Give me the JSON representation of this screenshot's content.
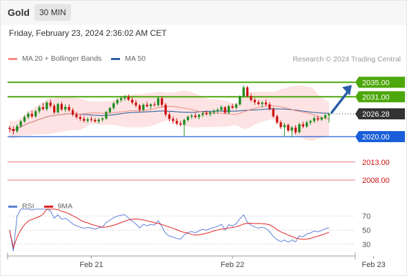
{
  "header": {
    "title": "Gold",
    "timeframe": "30 MIN"
  },
  "datetime": "Friday, February 23, 2024 2:36:02 AM CET",
  "legend": [
    {
      "label": "MA 20 + Bollinger Bands",
      "color": "#f28b82"
    },
    {
      "label": "MA 50",
      "color": "#2f5f9e"
    }
  ],
  "credit": "Research © 2024 Trading Central",
  "rsi_legend": [
    {
      "label": "RSI",
      "color": "#5b7fd6"
    },
    {
      "label": "9MA",
      "color": "#e02020"
    }
  ],
  "colors": {
    "up": "#1e8c1e",
    "down": "#cc1111",
    "resistance": "#4ca70a",
    "support": "#1a5fd9",
    "target_line": "#e57373",
    "arrow": "#2a5ea8",
    "bands": "#fde3e3"
  },
  "chart_data": [
    {
      "type": "candlestick",
      "title": "Gold",
      "ylim": [
        2004,
        2040
      ],
      "current_price": 2026.28,
      "levels": [
        {
          "value": 2035.0,
          "label": "2035.00",
          "kind": "resistance"
        },
        {
          "value": 2031.0,
          "label": "2031.00",
          "kind": "resistance"
        },
        {
          "value": 2026.28,
          "label": "2026.28",
          "kind": "current"
        },
        {
          "value": 2020.0,
          "label": "2020.00",
          "kind": "support"
        },
        {
          "value": 2013.0,
          "label": "2013.00",
          "kind": "target"
        },
        {
          "value": 2008.0,
          "label": "2008.00",
          "kind": "target"
        }
      ],
      "x_ticks": [
        "Feb 21",
        "Feb 22",
        "Feb 23"
      ],
      "x_tick_index": [
        22,
        60,
        98
      ],
      "series": [
        {
          "name": "Price",
          "ohlc": [
            [
              2022.4,
              2023.0,
              2021.2,
              2022.1
            ],
            [
              2022.1,
              2022.8,
              2020.6,
              2021.5
            ],
            [
              2021.5,
              2023.4,
              2021.0,
              2022.9
            ],
            [
              2022.9,
              2024.6,
              2022.5,
              2024.2
            ],
            [
              2024.2,
              2025.9,
              2023.8,
              2025.4
            ],
            [
              2025.4,
              2026.8,
              2024.9,
              2026.3
            ],
            [
              2026.3,
              2027.2,
              2025.1,
              2025.6
            ],
            [
              2025.6,
              2027.4,
              2025.2,
              2027.0
            ],
            [
              2027.0,
              2028.6,
              2026.4,
              2028.1
            ],
            [
              2028.1,
              2029.3,
              2027.2,
              2027.6
            ],
            [
              2027.6,
              2029.8,
              2027.1,
              2029.4
            ],
            [
              2029.4,
              2030.2,
              2028.0,
              2028.5
            ],
            [
              2028.5,
              2029.1,
              2026.2,
              2026.7
            ],
            [
              2026.7,
              2029.4,
              2026.4,
              2029.0
            ],
            [
              2029.0,
              2029.6,
              2027.1,
              2027.5
            ],
            [
              2027.5,
              2028.9,
              2026.8,
              2028.2
            ],
            [
              2028.2,
              2028.9,
              2026.9,
              2027.3
            ],
            [
              2027.3,
              2027.9,
              2025.6,
              2026.1
            ],
            [
              2026.1,
              2026.8,
              2024.9,
              2025.4
            ],
            [
              2025.4,
              2026.1,
              2024.3,
              2024.9
            ],
            [
              2024.9,
              2025.6,
              2023.9,
              2024.4
            ],
            [
              2024.4,
              2025.3,
              2023.8,
              2024.8
            ],
            [
              2024.8,
              2025.6,
              2024.1,
              2024.6
            ],
            [
              2024.6,
              2025.2,
              2023.9,
              2024.2
            ],
            [
              2024.2,
              2025.1,
              2023.6,
              2024.7
            ],
            [
              2024.7,
              2025.4,
              2024.1,
              2025.0
            ],
            [
              2025.0,
              2027.1,
              2024.6,
              2026.8
            ],
            [
              2026.8,
              2028.2,
              2026.3,
              2027.9
            ],
            [
              2027.9,
              2029.6,
              2027.4,
              2029.2
            ],
            [
              2029.2,
              2030.6,
              2028.7,
              2030.1
            ],
            [
              2030.1,
              2031.2,
              2029.5,
              2030.6
            ],
            [
              2030.6,
              2031.5,
              2029.9,
              2031.0
            ],
            [
              2031.0,
              2031.6,
              2029.8,
              2030.2
            ],
            [
              2030.2,
              2030.8,
              2028.9,
              2029.4
            ],
            [
              2029.4,
              2030.1,
              2028.1,
              2028.6
            ],
            [
              2028.6,
              2029.0,
              2026.9,
              2027.4
            ],
            [
              2027.4,
              2029.2,
              2027.0,
              2028.8
            ],
            [
              2028.8,
              2029.6,
              2028.0,
              2028.4
            ],
            [
              2028.4,
              2029.2,
              2027.6,
              2028.9
            ],
            [
              2028.9,
              2029.6,
              2028.2,
              2028.7
            ],
            [
              2028.7,
              2031.2,
              2028.3,
              2030.6
            ],
            [
              2030.6,
              2031.0,
              2028.2,
              2028.8
            ],
            [
              2028.8,
              2029.3,
              2025.5,
              2026.1
            ],
            [
              2026.1,
              2026.7,
              2024.2,
              2024.9
            ],
            [
              2024.9,
              2025.6,
              2023.6,
              2024.3
            ],
            [
              2024.3,
              2025.1,
              2023.1,
              2023.6
            ],
            [
              2023.6,
              2024.3,
              2022.8,
              2023.3
            ],
            [
              2023.3,
              2025.0,
              2020.2,
              2024.6
            ],
            [
              2024.6,
              2025.8,
              2024.1,
              2025.5
            ],
            [
              2025.5,
              2026.3,
              2024.9,
              2025.8
            ],
            [
              2025.8,
              2026.6,
              2025.0,
              2025.4
            ],
            [
              2025.4,
              2026.3,
              2024.8,
              2026.0
            ],
            [
              2026.0,
              2026.9,
              2025.4,
              2026.5
            ],
            [
              2026.5,
              2027.2,
              2025.8,
              2026.2
            ],
            [
              2026.2,
              2027.0,
              2025.6,
              2026.7
            ],
            [
              2026.7,
              2027.6,
              2026.1,
              2027.1
            ],
            [
              2027.1,
              2027.9,
              2026.5,
              2027.4
            ],
            [
              2027.4,
              2028.6,
              2026.9,
              2028.1
            ],
            [
              2028.1,
              2028.4,
              2026.2,
              2026.6
            ],
            [
              2026.6,
              2028.8,
              2026.2,
              2028.4
            ],
            [
              2028.4,
              2029.1,
              2027.6,
              2028.0
            ],
            [
              2028.0,
              2029.3,
              2027.5,
              2028.9
            ],
            [
              2028.9,
              2031.4,
              2028.6,
              2031.1
            ],
            [
              2031.1,
              2034.2,
              2030.8,
              2033.6
            ],
            [
              2033.6,
              2034.0,
              2030.8,
              2031.2
            ],
            [
              2031.2,
              2031.9,
              2029.6,
              2030.1
            ],
            [
              2030.1,
              2030.7,
              2028.8,
              2029.5
            ],
            [
              2029.5,
              2030.1,
              2028.6,
              2029.0
            ],
            [
              2029.0,
              2029.8,
              2028.1,
              2029.4
            ],
            [
              2029.4,
              2030.2,
              2028.4,
              2028.9
            ],
            [
              2028.9,
              2029.5,
              2027.2,
              2027.7
            ],
            [
              2027.7,
              2028.1,
              2025.2,
              2025.6
            ],
            [
              2025.6,
              2026.1,
              2023.4,
              2023.9
            ],
            [
              2023.9,
              2024.5,
              2022.1,
              2022.6
            ],
            [
              2022.6,
              2023.8,
              2020.1,
              2023.2
            ],
            [
              2023.2,
              2023.6,
              2021.2,
              2021.7
            ],
            [
              2021.7,
              2022.9,
              2019.8,
              2022.5
            ],
            [
              2022.5,
              2023.2,
              2020.6,
              2021.2
            ],
            [
              2021.2,
              2023.8,
              2020.9,
              2023.4
            ],
            [
              2023.4,
              2024.1,
              2022.3,
              2022.8
            ],
            [
              2022.8,
              2024.4,
              2022.4,
              2023.9
            ],
            [
              2023.9,
              2024.7,
              2023.2,
              2024.3
            ],
            [
              2024.3,
              2025.6,
              2023.8,
              2025.1
            ],
            [
              2025.1,
              2025.8,
              2024.2,
              2024.7
            ],
            [
              2024.7,
              2025.6,
              2024.3,
              2025.2
            ],
            [
              2025.2,
              2026.3,
              2024.8,
              2025.9
            ],
            [
              2025.9,
              2026.6,
              2023.9,
              2026.3
            ]
          ]
        },
        {
          "name": "MA 20 + Bollinger Bands",
          "kind": "bollinger",
          "period": 20,
          "stddev": 2
        },
        {
          "name": "MA 50",
          "kind": "sma",
          "period": 50
        }
      ]
    },
    {
      "type": "line",
      "title": "RSI",
      "ylim": [
        20,
        80
      ],
      "y_ticks": [
        70,
        50,
        30
      ],
      "series": [
        {
          "name": "RSI",
          "period": 14
        },
        {
          "name": "9MA",
          "period": 9
        }
      ]
    }
  ]
}
